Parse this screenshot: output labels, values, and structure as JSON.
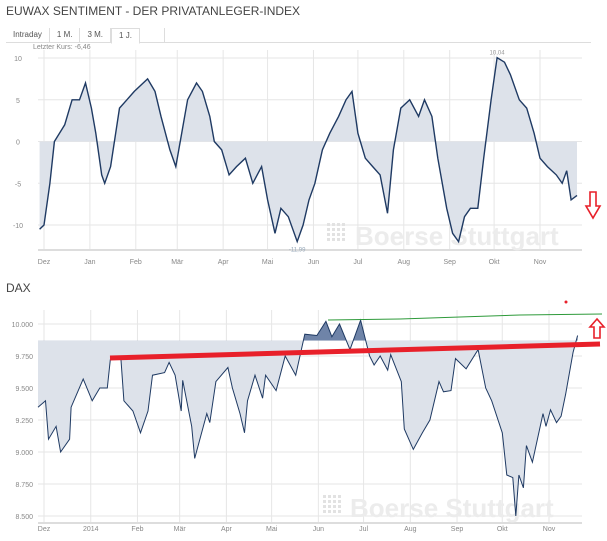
{
  "title": "EUWAX SENTIMENT - DER PRIVATANLEGER-INDEX",
  "tabs": [
    {
      "label": "Intraday"
    },
    {
      "label": "1 M."
    },
    {
      "label": "3 M."
    },
    {
      "label": "1 J.",
      "active": true
    }
  ],
  "last_price_label": "Letzter Kurs: -6,46",
  "watermark": "Boerse Stuttgart",
  "colors": {
    "line": "#1f3a63",
    "fill": "#dde2ea",
    "fill_dark": "#6f84a8",
    "grid": "#e6e6e6",
    "annotation_red": "#e8202a",
    "annotation_green": "#2e9a3a"
  },
  "chart_data": [
    {
      "type": "area",
      "title": "EUWAX SENTIMENT - DER PRIVATANLEGER-INDEX",
      "yticks": [
        "10",
        "5",
        "0",
        "-5",
        "-10"
      ],
      "ytick_values": [
        10,
        5,
        0,
        -5,
        -10
      ],
      "xticks": [
        "Dez",
        "Jan",
        "Feb",
        "Mär",
        "Apr",
        "Mai",
        "Jun",
        "Jul",
        "Aug",
        "Sep",
        "Okt",
        "Nov"
      ],
      "xtick_dates": [
        "2013-12-01",
        "2014-01-01",
        "2014-02-01",
        "2014-03-01",
        "2014-04-01",
        "2014-05-01",
        "2014-06-01",
        "2014-07-01",
        "2014-08-01",
        "2014-09-01",
        "2014-10-01",
        "2014-11-01"
      ],
      "ylim": [
        -13,
        11
      ],
      "grid": true,
      "annotations": [
        {
          "label": "10,04",
          "date": "2014-10-03",
          "value": 10.04
        },
        {
          "label": "-11,99",
          "date": "2014-05-21",
          "value": -11.99
        }
      ],
      "series": [
        {
          "points": [
            [
              "2013-11-28",
              -10.5
            ],
            [
              "2013-12-01",
              -10
            ],
            [
              "2013-12-05",
              -5
            ],
            [
              "2013-12-08",
              0
            ],
            [
              "2013-12-15",
              2
            ],
            [
              "2013-12-20",
              5
            ],
            [
              "2013-12-25",
              5
            ],
            [
              "2013-12-29",
              7
            ],
            [
              "2014-01-02",
              4
            ],
            [
              "2014-01-05",
              1
            ],
            [
              "2014-01-09",
              -4
            ],
            [
              "2014-01-11",
              -5
            ],
            [
              "2014-01-15",
              -3
            ],
            [
              "2014-01-21",
              4
            ],
            [
              "2014-01-26",
              5
            ],
            [
              "2014-01-31",
              6
            ],
            [
              "2014-02-09",
              7.5
            ],
            [
              "2014-02-14",
              6
            ],
            [
              "2014-02-18",
              3
            ],
            [
              "2014-02-24",
              -1
            ],
            [
              "2014-02-28",
              -3
            ],
            [
              "2014-03-04",
              1
            ],
            [
              "2014-03-08",
              5
            ],
            [
              "2014-03-14",
              7
            ],
            [
              "2014-03-18",
              6
            ],
            [
              "2014-03-23",
              3
            ],
            [
              "2014-03-26",
              0
            ],
            [
              "2014-03-31",
              -1
            ],
            [
              "2014-04-05",
              -4
            ],
            [
              "2014-04-10",
              -3
            ],
            [
              "2014-04-16",
              -2
            ],
            [
              "2014-04-21",
              -5
            ],
            [
              "2014-04-27",
              -3
            ],
            [
              "2014-05-01",
              -7
            ],
            [
              "2014-05-06",
              -11
            ],
            [
              "2014-05-10",
              -8
            ],
            [
              "2014-05-15",
              -9
            ],
            [
              "2014-05-21",
              -11.99
            ],
            [
              "2014-05-25",
              -10
            ],
            [
              "2014-05-29",
              -7
            ],
            [
              "2014-06-02",
              -5
            ],
            [
              "2014-06-07",
              -1
            ],
            [
              "2014-06-12",
              1
            ],
            [
              "2014-06-18",
              3
            ],
            [
              "2014-06-23",
              5
            ],
            [
              "2014-06-27",
              6
            ],
            [
              "2014-07-01",
              1
            ],
            [
              "2014-07-06",
              -2
            ],
            [
              "2014-07-11",
              -3
            ],
            [
              "2014-07-16",
              -4
            ],
            [
              "2014-07-21",
              -8.6
            ],
            [
              "2014-07-25",
              -1
            ],
            [
              "2014-07-30",
              4
            ],
            [
              "2014-08-05",
              5
            ],
            [
              "2014-08-11",
              3
            ],
            [
              "2014-08-15",
              5
            ],
            [
              "2014-08-20",
              3
            ],
            [
              "2014-08-24",
              -2
            ],
            [
              "2014-08-30",
              -8
            ],
            [
              "2014-09-03",
              -11
            ],
            [
              "2014-09-07",
              -12
            ],
            [
              "2014-09-11",
              -9
            ],
            [
              "2014-09-15",
              -8
            ],
            [
              "2014-09-20",
              -8
            ],
            [
              "2014-09-24",
              -2
            ],
            [
              "2014-09-29",
              5
            ],
            [
              "2014-10-03",
              10.04
            ],
            [
              "2014-10-08",
              9.5
            ],
            [
              "2014-10-12",
              8
            ],
            [
              "2014-10-18",
              5
            ],
            [
              "2014-10-23",
              4
            ],
            [
              "2014-10-28",
              1
            ],
            [
              "2014-11-01",
              -2
            ],
            [
              "2014-11-06",
              -3
            ],
            [
              "2014-11-12",
              -4
            ],
            [
              "2014-11-16",
              -5
            ],
            [
              "2014-11-19",
              -3.5
            ],
            [
              "2014-11-22",
              -7
            ],
            [
              "2014-11-26",
              -6.46
            ]
          ]
        }
      ]
    },
    {
      "type": "area",
      "title": "DAX",
      "yticks": [
        "10.000",
        "9.750",
        "9.500",
        "9.250",
        "9.000",
        "8.750",
        "8.500"
      ],
      "ytick_values": [
        10000,
        9750,
        9500,
        9250,
        9000,
        8750,
        8500
      ],
      "xticks": [
        "Dez",
        "2014",
        "Feb",
        "Mär",
        "Apr",
        "Mai",
        "Jun",
        "Jul",
        "Aug",
        "Sep",
        "Okt",
        "Nov"
      ],
      "xtick_dates": [
        "2013-12-01",
        "2014-01-01",
        "2014-02-01",
        "2014-03-01",
        "2014-04-01",
        "2014-05-01",
        "2014-06-01",
        "2014-07-01",
        "2014-08-01",
        "2014-09-01",
        "2014-10-01",
        "2014-11-01"
      ],
      "ylim": [
        8400,
        10150
      ],
      "baseline": 9870,
      "grid": true,
      "series": [
        {
          "points": [
            [
              "2013-11-27",
              9350
            ],
            [
              "2013-12-02",
              9400
            ],
            [
              "2013-12-04",
              9100
            ],
            [
              "2013-12-09",
              9200
            ],
            [
              "2013-12-12",
              9000
            ],
            [
              "2013-12-18",
              9100
            ],
            [
              "2013-12-19",
              9350
            ],
            [
              "2013-12-27",
              9570
            ],
            [
              "2014-01-02",
              9400
            ],
            [
              "2014-01-07",
              9500
            ],
            [
              "2014-01-12",
              9500
            ],
            [
              "2014-01-14",
              9720
            ],
            [
              "2014-01-21",
              9730
            ],
            [
              "2014-01-23",
              9400
            ],
            [
              "2014-01-29",
              9320
            ],
            [
              "2014-02-03",
              9150
            ],
            [
              "2014-02-08",
              9320
            ],
            [
              "2014-02-11",
              9600
            ],
            [
              "2014-02-19",
              9620
            ],
            [
              "2014-02-22",
              9700
            ],
            [
              "2014-02-26",
              9600
            ],
            [
              "2014-03-02",
              9320
            ],
            [
              "2014-03-03",
              9560
            ],
            [
              "2014-03-09",
              9200
            ],
            [
              "2014-03-11",
              8950
            ],
            [
              "2014-03-19",
              9300
            ],
            [
              "2014-03-21",
              9230
            ],
            [
              "2014-03-25",
              9550
            ],
            [
              "2014-04-02",
              9660
            ],
            [
              "2014-04-05",
              9500
            ],
            [
              "2014-04-10",
              9300
            ],
            [
              "2014-04-13",
              9150
            ],
            [
              "2014-04-15",
              9400
            ],
            [
              "2014-04-20",
              9600
            ],
            [
              "2014-04-25",
              9420
            ],
            [
              "2014-04-27",
              9600
            ],
            [
              "2014-05-04",
              9480
            ],
            [
              "2014-05-10",
              9750
            ],
            [
              "2014-05-17",
              9600
            ],
            [
              "2014-05-23",
              9920
            ],
            [
              "2014-05-31",
              9910
            ],
            [
              "2014-06-06",
              10020
            ],
            [
              "2014-06-10",
              9900
            ],
            [
              "2014-06-15",
              10000
            ],
            [
              "2014-06-22",
              9800
            ],
            [
              "2014-06-29",
              10030
            ],
            [
              "2014-07-05",
              9750
            ],
            [
              "2014-07-08",
              9680
            ],
            [
              "2014-07-12",
              9750
            ],
            [
              "2014-07-17",
              9640
            ],
            [
              "2014-07-19",
              9760
            ],
            [
              "2014-07-26",
              9550
            ],
            [
              "2014-07-28",
              9180
            ],
            [
              "2014-08-03",
              9020
            ],
            [
              "2014-08-09",
              9150
            ],
            [
              "2014-08-14",
              9250
            ],
            [
              "2014-08-20",
              9550
            ],
            [
              "2014-08-23",
              9470
            ],
            [
              "2014-08-28",
              9480
            ],
            [
              "2014-08-31",
              9730
            ],
            [
              "2014-09-07",
              9650
            ],
            [
              "2014-09-15",
              9800
            ],
            [
              "2014-09-20",
              9500
            ],
            [
              "2014-09-24",
              9400
            ],
            [
              "2014-10-01",
              9150
            ],
            [
              "2014-10-04",
              8820
            ],
            [
              "2014-10-08",
              8800
            ],
            [
              "2014-10-10",
              8500
            ],
            [
              "2014-10-12",
              8820
            ],
            [
              "2014-10-15",
              8720
            ],
            [
              "2014-10-17",
              9050
            ],
            [
              "2014-10-21",
              8920
            ],
            [
              "2014-10-28",
              9300
            ],
            [
              "2014-10-30",
              9200
            ],
            [
              "2014-11-02",
              9330
            ],
            [
              "2014-11-06",
              9230
            ],
            [
              "2014-11-09",
              9280
            ],
            [
              "2014-11-12",
              9450
            ],
            [
              "2014-11-17",
              9780
            ],
            [
              "2014-11-20",
              9910
            ]
          ]
        }
      ]
    }
  ]
}
